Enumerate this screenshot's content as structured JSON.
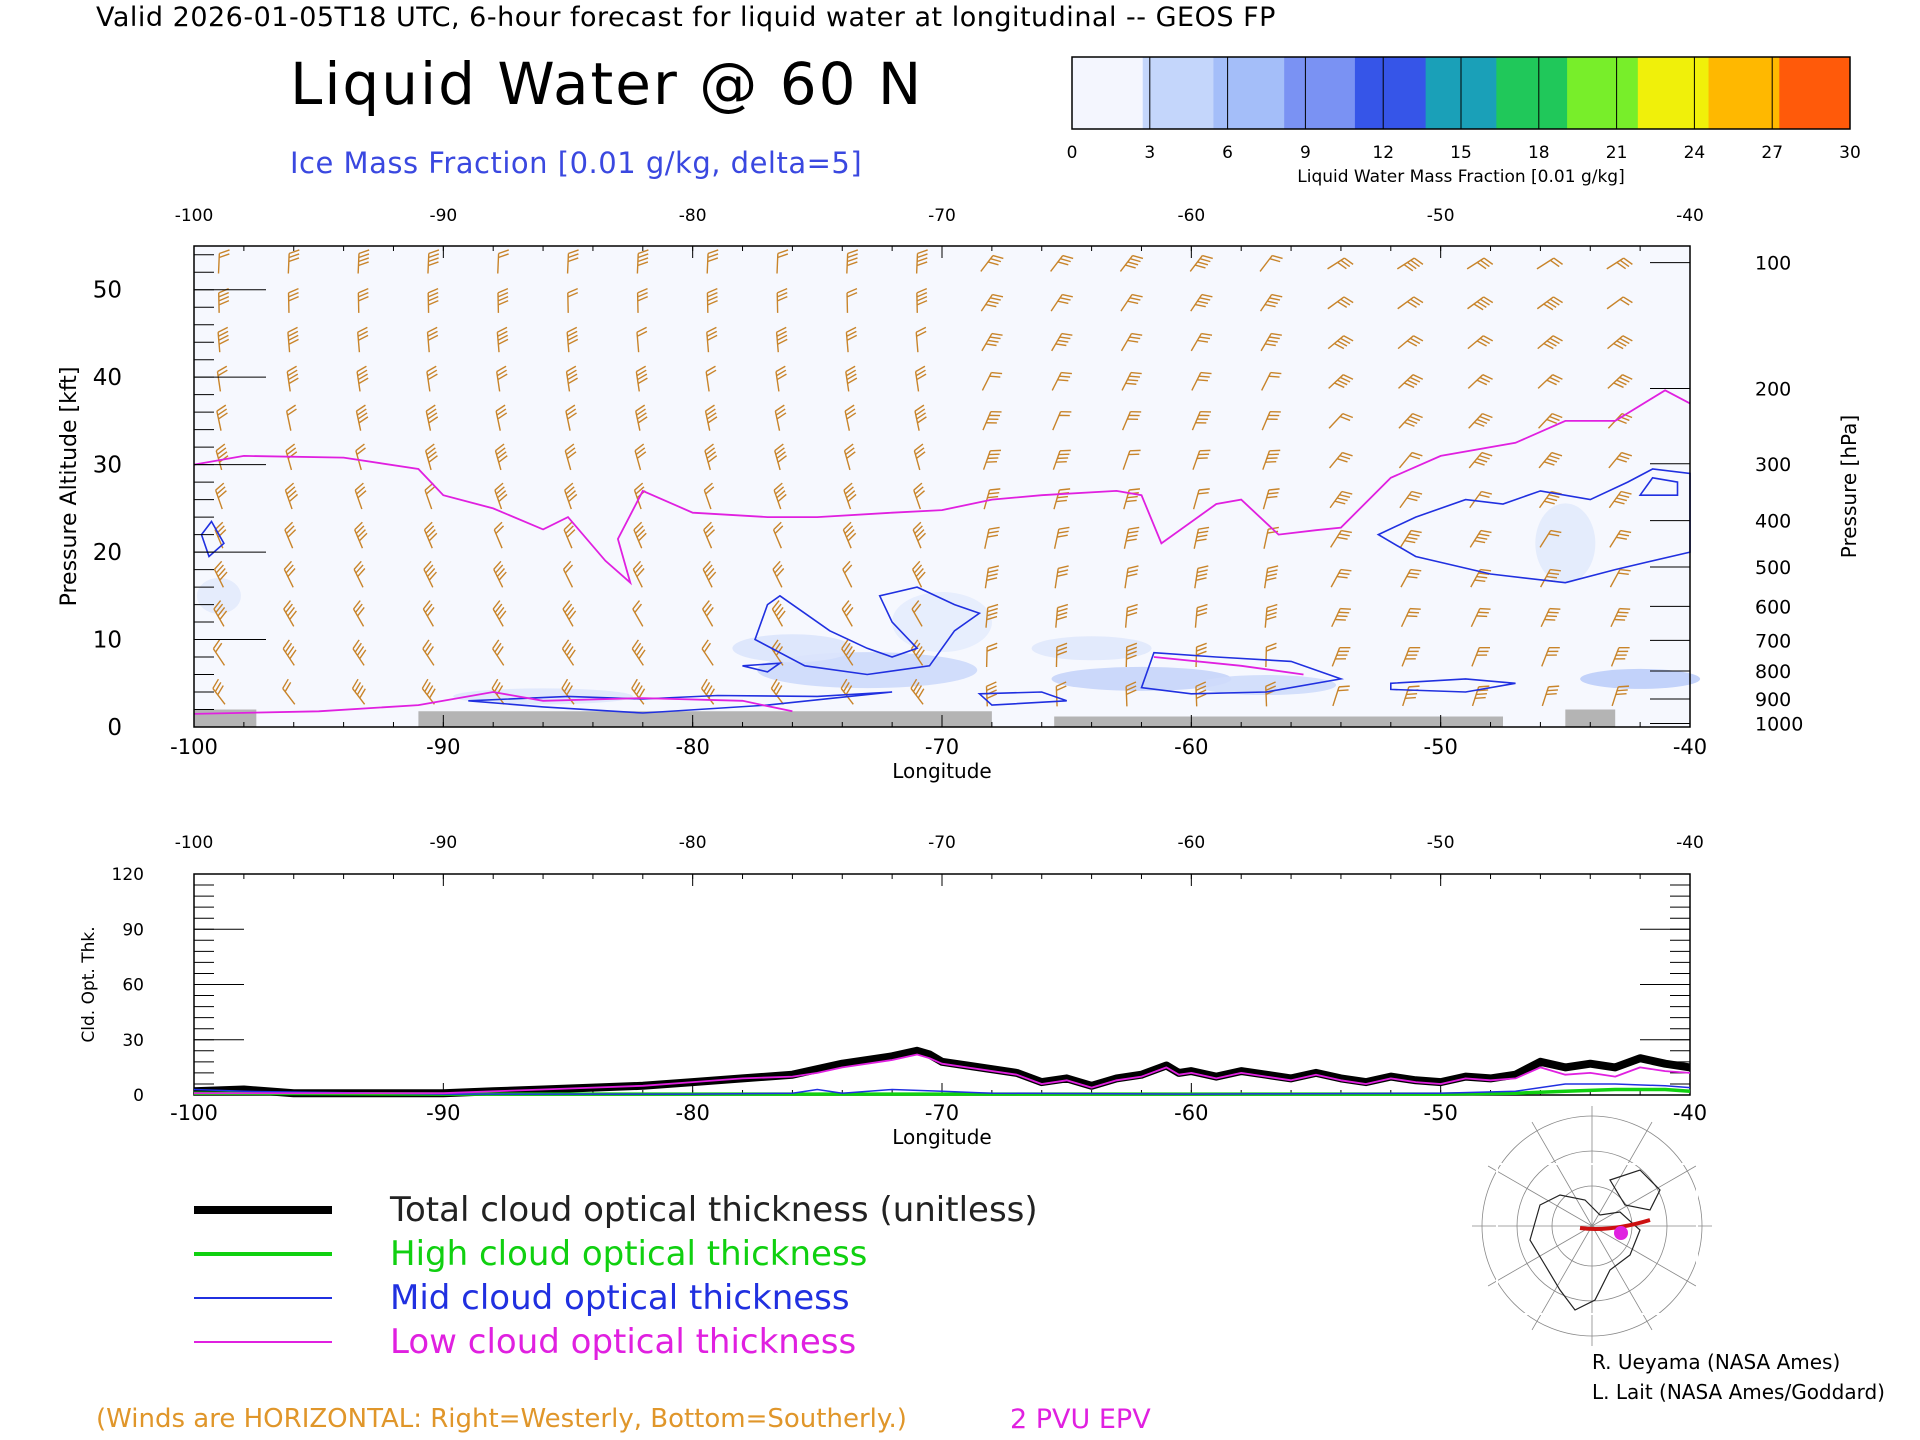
{
  "header": {
    "line": "Valid 2026-01-05T18 UTC, 6-hour forecast for liquid water at longitudinal -- GEOS FP",
    "title": "Liquid Water @ 60 N",
    "ice_label": "Ice Mass Fraction [0.01 g/kg, delta=5]"
  },
  "colorbar": {
    "label": "Liquid Water Mass Fraction [0.01 g/kg]",
    "ticks": [
      "0",
      "3",
      "6",
      "9",
      "12",
      "15",
      "18",
      "21",
      "24",
      "27",
      "30"
    ],
    "colors": [
      "#f4f6fe",
      "#c4d6fb",
      "#a4bef9",
      "#7a92f3",
      "#3655e8",
      "#1aa0b8",
      "#20c85a",
      "#78ee2a",
      "#f0f00a",
      "#ffb800",
      "#ff5a0a"
    ]
  },
  "chart_data": [
    {
      "type": "contour-section",
      "x_ticks": [
        "-100",
        "-90",
        "-80",
        "-70",
        "-60",
        "-50",
        "-40"
      ],
      "xlabel": "Longitude",
      "ylabel": "Pressure Altitude [kft]",
      "y_ticks": [
        "0",
        "10",
        "20",
        "30",
        "40",
        "50"
      ],
      "ylim": [
        0,
        55
      ],
      "xlim": [
        -100,
        -40
      ],
      "ylabel_right": "Pressure [hPa]",
      "pressure_ticks": [
        {
          "label": "100",
          "kft": 53.1
        },
        {
          "label": "200",
          "kft": 38.7
        },
        {
          "label": "300",
          "kft": 30.1
        },
        {
          "label": "400",
          "kft": 23.6
        },
        {
          "label": "500",
          "kft": 18.3
        },
        {
          "label": "600",
          "kft": 13.8
        },
        {
          "label": "700",
          "kft": 9.9
        },
        {
          "label": "800",
          "kft": 6.4
        },
        {
          "label": "900",
          "kft": 3.2
        },
        {
          "label": "1000",
          "kft": 0.4
        }
      ],
      "epv_2pvu": [
        [
          -100,
          30.0
        ],
        [
          -98,
          31.0
        ],
        [
          -94,
          30.8
        ],
        [
          -91,
          29.5
        ],
        [
          -90,
          26.5
        ],
        [
          -88,
          25.0
        ],
        [
          -86,
          22.6
        ],
        [
          -85,
          24.0
        ],
        [
          -83.5,
          19.0
        ],
        [
          -82.5,
          16.5
        ],
        [
          -83,
          21.5
        ],
        [
          -82,
          27.0
        ],
        [
          -80,
          24.5
        ],
        [
          -77,
          24.0
        ],
        [
          -75,
          24.0
        ],
        [
          -72,
          24.5
        ],
        [
          -70,
          24.8
        ],
        [
          -68,
          26.0
        ],
        [
          -66,
          26.5
        ],
        [
          -63,
          27.0
        ],
        [
          -62,
          26.5
        ],
        [
          -61.2,
          21.0
        ],
        [
          -59,
          25.5
        ],
        [
          -58,
          26.0
        ],
        [
          -56.5,
          22.0
        ],
        [
          -55,
          22.5
        ],
        [
          -54,
          22.8
        ],
        [
          -52,
          28.5
        ],
        [
          -50,
          31.0
        ],
        [
          -47,
          32.5
        ],
        [
          -45,
          35.0
        ],
        [
          -43,
          35.0
        ],
        [
          -41,
          38.5
        ],
        [
          -40,
          37.0
        ]
      ]
    },
    {
      "type": "line",
      "xlabel": "Longitude",
      "ylabel": "Cld. Opt. Thk.",
      "x_ticks": [
        "-100",
        "-90",
        "-80",
        "-70",
        "-60",
        "-50",
        "-40"
      ],
      "y_ticks": [
        "0",
        "30",
        "60",
        "90",
        "120"
      ],
      "xlim": [
        -100,
        -40
      ],
      "ylim": [
        0,
        120
      ],
      "series": [
        {
          "name": "Total cloud optical thickness (unitless)",
          "color": "#000000",
          "points": [
            [
              -100,
              2
            ],
            [
              -98,
              3
            ],
            [
              -96,
              1
            ],
            [
              -92,
              1
            ],
            [
              -90,
              1
            ],
            [
              -88,
              2
            ],
            [
              -86,
              3
            ],
            [
              -84,
              4
            ],
            [
              -82,
              5
            ],
            [
              -80,
              7
            ],
            [
              -78,
              9
            ],
            [
              -76,
              11
            ],
            [
              -75,
              14
            ],
            [
              -74,
              17
            ],
            [
              -72,
              21
            ],
            [
              -71,
              24
            ],
            [
              -70.5,
              22
            ],
            [
              -70,
              18
            ],
            [
              -69,
              16
            ],
            [
              -67,
              12
            ],
            [
              -66,
              7
            ],
            [
              -65,
              9
            ],
            [
              -64,
              5
            ],
            [
              -63,
              9
            ],
            [
              -62,
              11
            ],
            [
              -61,
              16
            ],
            [
              -60.5,
              12
            ],
            [
              -60,
              13
            ],
            [
              -59,
              10
            ],
            [
              -58,
              13
            ],
            [
              -57,
              11
            ],
            [
              -56,
              9
            ],
            [
              -55,
              12
            ],
            [
              -54,
              9
            ],
            [
              -53,
              7
            ],
            [
              -52,
              10
            ],
            [
              -51,
              8
            ],
            [
              -50,
              7
            ],
            [
              -49,
              10
            ],
            [
              -48,
              9
            ],
            [
              -47,
              11
            ],
            [
              -46,
              18
            ],
            [
              -45,
              15
            ],
            [
              -44,
              17
            ],
            [
              -43,
              15
            ],
            [
              -42,
              20
            ],
            [
              -41,
              17
            ],
            [
              -40,
              15
            ]
          ]
        },
        {
          "name": "High cloud optical thickness",
          "color": "#10d010",
          "points": [
            [
              -100,
              1
            ],
            [
              -90,
              0.5
            ],
            [
              -80,
              0.5
            ],
            [
              -70,
              0.5
            ],
            [
              -60,
              0.5
            ],
            [
              -50,
              0.5
            ],
            [
              -47,
              1
            ],
            [
              -45,
              2
            ],
            [
              -43,
              3
            ],
            [
              -41,
              3
            ],
            [
              -40,
              2
            ]
          ]
        },
        {
          "name": "Mid cloud optical thickness",
          "color": "#2030e0",
          "points": [
            [
              -100,
              3
            ],
            [
              -98,
              2
            ],
            [
              -90,
              0.5
            ],
            [
              -80,
              0.5
            ],
            [
              -76,
              1
            ],
            [
              -75,
              3
            ],
            [
              -74,
              1
            ],
            [
              -72,
              3
            ],
            [
              -70,
              2
            ],
            [
              -68,
              1
            ],
            [
              -60,
              0.5
            ],
            [
              -50,
              1
            ],
            [
              -47,
              2
            ],
            [
              -45,
              6
            ],
            [
              -43,
              6
            ],
            [
              -41,
              5
            ],
            [
              -40,
              4
            ]
          ]
        },
        {
          "name": "Low cloud optical thickness",
          "color": "#e020e0",
          "points": [
            [
              -100,
              1
            ],
            [
              -96,
              1
            ],
            [
              -92,
              1
            ],
            [
              -90,
              1
            ],
            [
              -88,
              2
            ],
            [
              -86,
              3
            ],
            [
              -84,
              4
            ],
            [
              -82,
              5
            ],
            [
              -80,
              7
            ],
            [
              -78,
              9
            ],
            [
              -76,
              10
            ],
            [
              -75,
              12
            ],
            [
              -74,
              15
            ],
            [
              -72,
              19
            ],
            [
              -71,
              22
            ],
            [
              -70.5,
              20
            ],
            [
              -70,
              17
            ],
            [
              -69,
              15
            ],
            [
              -67,
              11
            ],
            [
              -66,
              6
            ],
            [
              -65,
              8
            ],
            [
              -64,
              4
            ],
            [
              -63,
              8
            ],
            [
              -62,
              10
            ],
            [
              -61,
              15
            ],
            [
              -60.5,
              11
            ],
            [
              -60,
              12
            ],
            [
              -59,
              9
            ],
            [
              -58,
              12
            ],
            [
              -57,
              10
            ],
            [
              -56,
              8
            ],
            [
              -55,
              11
            ],
            [
              -54,
              8
            ],
            [
              -53,
              6
            ],
            [
              -52,
              9
            ],
            [
              -51,
              7
            ],
            [
              -50,
              6
            ],
            [
              -49,
              9
            ],
            [
              -48,
              8
            ],
            [
              -47,
              9
            ],
            [
              -46,
              15
            ],
            [
              -45,
              11
            ],
            [
              -44,
              12
            ],
            [
              -43,
              10
            ],
            [
              -42,
              15
            ],
            [
              -41,
              13
            ],
            [
              -40,
              12
            ]
          ]
        }
      ]
    }
  ],
  "legend": [
    {
      "label": "Total cloud optical thickness (unitless)",
      "color": "#000000"
    },
    {
      "label": "High cloud optical thickness",
      "color": "#10d010"
    },
    {
      "label": "Mid cloud optical thickness",
      "color": "#2030e0"
    },
    {
      "label": "Low cloud optical thickness",
      "color": "#e020e0"
    }
  ],
  "credits": {
    "line1": "R. Ueyama (NASA Ames)",
    "line2": "L. Lait (NASA Ames/Goddard)"
  },
  "notes": {
    "winds": "(Winds are HORIZONTAL: Right=Westerly, Bottom=Southerly.)",
    "epv": "2 PVU EPV"
  },
  "colors": {
    "epv": "#e020e0",
    "ice_contour": "#2030e0",
    "wind_barb": "#c8842a",
    "ground": "#b4b4b4"
  }
}
